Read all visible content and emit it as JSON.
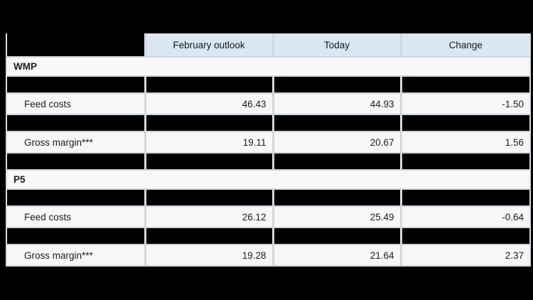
{
  "colors": {
    "page_background": "#000000",
    "header_background": "#dbe7f0",
    "row_background": "#f7f7f7",
    "redaction": "#000000",
    "grid_line": "#cfd6db",
    "text": "#1b1b1b"
  },
  "table": {
    "columns": [
      {
        "label": "",
        "redacted": true
      },
      {
        "label": "February outlook"
      },
      {
        "label": "Today"
      },
      {
        "label": "Change"
      }
    ],
    "sections": [
      {
        "title": "WMP",
        "rows": [
          {
            "type": "redacted",
            "label": "",
            "february_outlook": "",
            "today": "",
            "change": ""
          },
          {
            "type": "data",
            "label": "Feed costs",
            "february_outlook": "46.43",
            "today": "44.93",
            "change": "-1.50"
          },
          {
            "type": "redacted",
            "label": "",
            "february_outlook": "",
            "today": "",
            "change": ""
          },
          {
            "type": "data",
            "label": "Gross margin***",
            "february_outlook": "19.11",
            "today": "20.67",
            "change": "1.56"
          },
          {
            "type": "redacted",
            "label": "",
            "february_outlook": "",
            "today": "",
            "change": ""
          }
        ]
      },
      {
        "title": "P5",
        "rows": [
          {
            "type": "redacted",
            "label": "",
            "february_outlook": "",
            "today": "",
            "change": ""
          },
          {
            "type": "data",
            "label": "Feed costs",
            "february_outlook": "26.12",
            "today": "25.49",
            "change": "-0.64"
          },
          {
            "type": "redacted",
            "label": "",
            "february_outlook": "",
            "today": "",
            "change": ""
          },
          {
            "type": "data",
            "label": "Gross margin***",
            "february_outlook": "19.28",
            "today": "21.64",
            "change": "2.37"
          }
        ]
      }
    ]
  }
}
